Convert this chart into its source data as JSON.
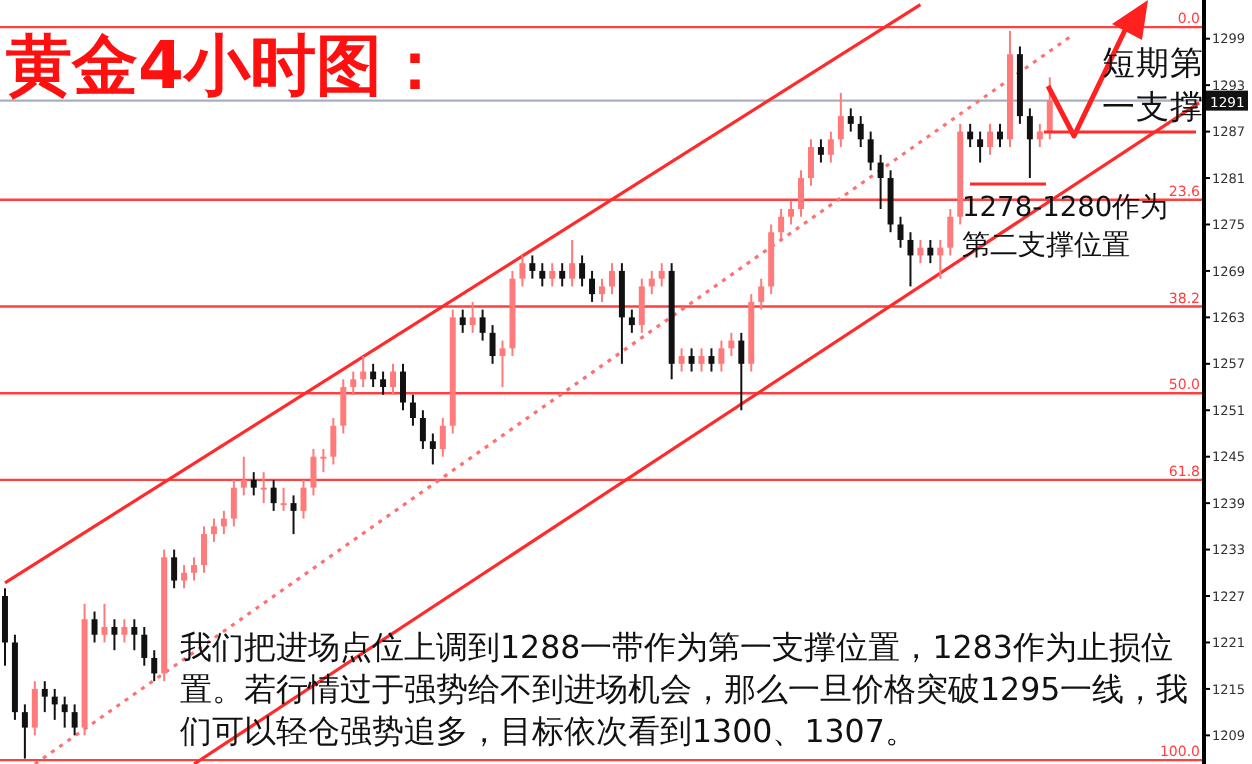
{
  "chart_data": {
    "type": "candlestick",
    "title": "黄金4小时图：",
    "categories": [
      null,
      null,
      null,
      null,
      null,
      null,
      null,
      null,
      null,
      null,
      null,
      null,
      null,
      null,
      null,
      null,
      null,
      null,
      null,
      null,
      null,
      null,
      null,
      null,
      null,
      null,
      null,
      null,
      null,
      null,
      null,
      null,
      null,
      null,
      null,
      null,
      null,
      null,
      null,
      null,
      null,
      null,
      null,
      null,
      null,
      null,
      null,
      null,
      null,
      null,
      null,
      null,
      null,
      null,
      null,
      null,
      null,
      null,
      null,
      null,
      null,
      null,
      null,
      null,
      null,
      null,
      null,
      null,
      null,
      null,
      null,
      null,
      null,
      null,
      null,
      null,
      null,
      null,
      null,
      null,
      null,
      null,
      null,
      null,
      null,
      null,
      null,
      null,
      null,
      null,
      null,
      null,
      null,
      null,
      null,
      null,
      null,
      null,
      null,
      null,
      null,
      null,
      null,
      null,
      null,
      null,
      null,
      null,
      null,
      null,
      null,
      null,
      null,
      null,
      null,
      null,
      null,
      null,
      null,
      null,
      null
    ],
    "ohlc": [
      [
        1227,
        1228,
        1218,
        1221
      ],
      [
        1221,
        1222,
        1211,
        1212
      ],
      [
        1212,
        1213,
        1206,
        1210
      ],
      [
        1210,
        1216,
        1209,
        1215
      ],
      [
        1215,
        1216,
        1212,
        1214
      ],
      [
        1214,
        1215,
        1211,
        1213
      ],
      [
        1213,
        1214,
        1210,
        1212
      ],
      [
        1212,
        1213,
        1209,
        1210
      ],
      [
        1210,
        1226,
        1209,
        1224
      ],
      [
        1224,
        1225,
        1221,
        1222
      ],
      [
        1222,
        1226,
        1221,
        1223
      ],
      [
        1223,
        1224,
        1220,
        1222
      ],
      [
        1222,
        1224,
        1221,
        1223
      ],
      [
        1223,
        1224,
        1220,
        1222
      ],
      [
        1222,
        1223,
        1218,
        1219
      ],
      [
        1219,
        1220,
        1216,
        1217
      ],
      [
        1217,
        1233,
        1216,
        1232
      ],
      [
        1232,
        1233,
        1228,
        1229
      ],
      [
        1229,
        1231,
        1228,
        1230
      ],
      [
        1230,
        1232,
        1229,
        1231
      ],
      [
        1231,
        1236,
        1230,
        1235
      ],
      [
        1235,
        1237,
        1234,
        1236
      ],
      [
        1236,
        1238,
        1235,
        1237
      ],
      [
        1237,
        1242,
        1236,
        1241
      ],
      [
        1241,
        1245,
        1240,
        1242
      ],
      [
        1242,
        1243,
        1240,
        1241
      ],
      [
        1241,
        1243,
        1239,
        1241
      ],
      [
        1241,
        1242,
        1238,
        1239
      ],
      [
        1239,
        1241,
        1238,
        1239
      ],
      [
        1239,
        1240,
        1235,
        1238
      ],
      [
        1238,
        1242,
        1237,
        1241
      ],
      [
        1241,
        1246,
        1240,
        1245
      ],
      [
        1245,
        1246,
        1243,
        1245
      ],
      [
        1245,
        1250,
        1244,
        1249
      ],
      [
        1249,
        1255,
        1248,
        1254
      ],
      [
        1254,
        1256,
        1253,
        1255
      ],
      [
        1255,
        1258,
        1254,
        1256
      ],
      [
        1256,
        1257,
        1254,
        1255
      ],
      [
        1255,
        1256,
        1253,
        1254
      ],
      [
        1254,
        1257,
        1253,
        1256
      ],
      [
        1256,
        1257,
        1251,
        1252
      ],
      [
        1252,
        1253,
        1249,
        1250
      ],
      [
        1250,
        1251,
        1246,
        1247
      ],
      [
        1247,
        1248,
        1244,
        1246
      ],
      [
        1246,
        1250,
        1245,
        1249
      ],
      [
        1249,
        1264,
        1248,
        1263
      ],
      [
        1263,
        1264,
        1261,
        1262
      ],
      [
        1262,
        1265,
        1261,
        1263
      ],
      [
        1263,
        1264,
        1260,
        1261
      ],
      [
        1261,
        1262,
        1257,
        1258
      ],
      [
        1258,
        1260,
        1254,
        1259
      ],
      [
        1259,
        1269,
        1258,
        1268
      ],
      [
        1268,
        1271,
        1267,
        1270
      ],
      [
        1270,
        1271,
        1268,
        1269
      ],
      [
        1269,
        1270,
        1267,
        1268
      ],
      [
        1268,
        1270,
        1267,
        1269
      ],
      [
        1269,
        1270,
        1267,
        1268
      ],
      [
        1268,
        1273,
        1267,
        1270
      ],
      [
        1270,
        1271,
        1267,
        1268
      ],
      [
        1268,
        1269,
        1265,
        1266
      ],
      [
        1266,
        1268,
        1265,
        1267
      ],
      [
        1267,
        1270,
        1266,
        1269
      ],
      [
        1269,
        1270,
        1257,
        1263
      ],
      [
        1263,
        1264,
        1261,
        1262
      ],
      [
        1262,
        1268,
        1261,
        1267
      ],
      [
        1267,
        1269,
        1266,
        1268
      ],
      [
        1268,
        1270,
        1267,
        1269
      ],
      [
        1269,
        1270,
        1255,
        1257
      ],
      [
        1257,
        1259,
        1256,
        1258
      ],
      [
        1258,
        1259,
        1256,
        1257
      ],
      [
        1257,
        1259,
        1256,
        1258
      ],
      [
        1258,
        1259,
        1256,
        1257
      ],
      [
        1257,
        1260,
        1256,
        1259
      ],
      [
        1259,
        1261,
        1258,
        1260
      ],
      [
        1260,
        1261,
        1251,
        1257
      ],
      [
        1257,
        1266,
        1256,
        1265
      ],
      [
        1265,
        1268,
        1264,
        1267
      ],
      [
        1267,
        1275,
        1266,
        1274
      ],
      [
        1274,
        1277,
        1273,
        1276
      ],
      [
        1276,
        1278,
        1275,
        1277
      ],
      [
        1277,
        1282,
        1276,
        1281
      ],
      [
        1281,
        1286,
        1280,
        1285
      ],
      [
        1285,
        1286,
        1283,
        1284
      ],
      [
        1284,
        1287,
        1283,
        1286
      ],
      [
        1286,
        1292,
        1285,
        1289
      ],
      [
        1289,
        1290,
        1287,
        1288
      ],
      [
        1288,
        1289,
        1285,
        1286
      ],
      [
        1286,
        1287,
        1282,
        1283
      ],
      [
        1283,
        1284,
        1277,
        1281
      ],
      [
        1281,
        1282,
        1274,
        1275
      ],
      [
        1275,
        1276,
        1272,
        1273
      ],
      [
        1273,
        1274,
        1267,
        1271
      ],
      [
        1271,
        1273,
        1270,
        1272
      ],
      [
        1272,
        1273,
        1270,
        1271
      ],
      [
        1271,
        1273,
        1268,
        1272
      ],
      [
        1272,
        1277,
        1271,
        1276
      ],
      [
        1276,
        1288,
        1275,
        1287
      ],
      [
        1287,
        1288,
        1285,
        1286
      ],
      [
        1286,
        1287,
        1283,
        1285
      ],
      [
        1285,
        1288,
        1284,
        1287
      ],
      [
        1287,
        1288,
        1285,
        1286
      ],
      [
        1286,
        1300,
        1285,
        1297
      ],
      [
        1297,
        1298,
        1288,
        1289
      ],
      [
        1289,
        1290,
        1281,
        1286
      ],
      [
        1286,
        1288,
        1285,
        1287
      ],
      [
        1287,
        1294,
        1286,
        1291
      ],
      null,
      null,
      null,
      null,
      null,
      null,
      null,
      null,
      null,
      null,
      null,
      null,
      null,
      null,
      null
    ],
    "series": [
      {
        "type": "line",
        "values": [
          1228.7,
          null,
          null,
          null,
          null,
          null,
          null,
          null,
          null,
          null,
          null,
          null,
          null,
          null,
          null,
          null,
          null,
          null,
          null,
          null,
          null,
          null,
          null,
          null,
          null,
          null,
          null,
          null,
          null,
          null,
          null,
          null,
          null,
          null,
          null,
          null,
          null,
          null,
          null,
          null,
          null,
          null,
          null,
          null,
          null,
          null,
          null,
          null,
          null,
          null,
          null,
          null,
          null,
          null,
          null,
          null,
          null,
          null,
          null,
          null,
          null,
          null,
          null,
          null,
          null,
          null,
          null,
          null,
          null,
          null,
          null,
          null,
          null,
          null,
          null,
          null,
          null,
          null,
          null,
          null,
          null,
          null,
          null,
          null,
          null,
          null,
          null,
          null,
          null,
          null,
          null,
          null,
          1303.4,
          null,
          null,
          null,
          null,
          null,
          null,
          null,
          null,
          null,
          null,
          null,
          null,
          null,
          null,
          null,
          null,
          null,
          null,
          null,
          null,
          null,
          null,
          null,
          null,
          null,
          null,
          null,
          null
        ],
        "color": "#ff2a2a"
      },
      {
        "type": "line",
        "values": [
          null,
          null,
          null,
          null,
          null,
          null,
          null,
          null,
          null,
          null,
          null,
          null,
          null,
          null,
          null,
          null,
          null,
          null,
          null,
          1205.3,
          null,
          null,
          null,
          null,
          null,
          null,
          null,
          null,
          null,
          null,
          null,
          null,
          null,
          null,
          null,
          null,
          null,
          null,
          null,
          null,
          null,
          null,
          null,
          null,
          null,
          null,
          null,
          null,
          null,
          null,
          null,
          null,
          null,
          null,
          null,
          null,
          null,
          null,
          null,
          null,
          null,
          null,
          null,
          null,
          null,
          null,
          null,
          null,
          null,
          null,
          null,
          null,
          null,
          null,
          null,
          null,
          null,
          null,
          null,
          null,
          null,
          null,
          null,
          null,
          null,
          null,
          null,
          null,
          null,
          null,
          null,
          null,
          null,
          null,
          null,
          null,
          null,
          null,
          null,
          null,
          null,
          null,
          null,
          null,
          null,
          null,
          null,
          null,
          null,
          null,
          null,
          null,
          null,
          null,
          null,
          null,
          null,
          null,
          null,
          null,
          1290.7
        ],
        "color": "#ff2a2a"
      },
      {
        "type": "line",
        "values": [
          null,
          null,
          null,
          1205.3,
          null,
          null,
          null,
          null,
          null,
          null,
          null,
          null,
          null,
          null,
          null,
          null,
          null,
          null,
          null,
          null,
          null,
          null,
          null,
          null,
          null,
          null,
          null,
          null,
          null,
          null,
          null,
          null,
          null,
          null,
          null,
          null,
          null,
          null,
          null,
          null,
          null,
          null,
          null,
          null,
          null,
          null,
          null,
          null,
          null,
          null,
          null,
          null,
          null,
          null,
          null,
          null,
          null,
          null,
          null,
          null,
          null,
          null,
          null,
          null,
          null,
          null,
          null,
          null,
          null,
          null,
          null,
          null,
          null,
          null,
          null,
          null,
          null,
          null,
          null,
          null,
          null,
          null,
          null,
          null,
          null,
          null,
          null,
          null,
          null,
          null,
          null,
          null,
          null,
          null,
          null,
          null,
          null,
          null,
          null,
          null,
          null,
          null,
          null,
          null,
          null,
          null,
          null,
          1299.2,
          null,
          null,
          null,
          null,
          null,
          null,
          null,
          null,
          null,
          null,
          null,
          null,
          null
        ],
        "color": "#ff7070",
        "line_style": "dotted"
      }
    ],
    "ylim": [
      1205.3,
      1304
    ],
    "yticks": [
      1299,
      1293,
      1287,
      1281,
      1275,
      1269,
      1263,
      1257,
      1251,
      1245,
      1239,
      1233,
      1227,
      1221,
      1215,
      1209
    ],
    "tick_labels": "y",
    "ref_lines": [
      {
        "axis": "y",
        "value": 1300.5,
        "color": "#ff4040"
      },
      {
        "axis": "y",
        "value": 1278.2,
        "color": "#ff4040"
      },
      {
        "axis": "y",
        "value": 1264.4,
        "color": "#ff4040"
      },
      {
        "axis": "y",
        "value": 1253.2,
        "color": "#ff4040"
      },
      {
        "axis": "y",
        "value": 1242.0,
        "color": "#ff4040"
      },
      {
        "axis": "y",
        "value": 1205.8,
        "color": "#ff4040"
      },
      {
        "axis": "y",
        "value": 1291,
        "label": "1291",
        "color": "#a8b0c0"
      }
    ],
    "annotations": [
      {
        "text": "0.0",
        "y": 1300.5
      },
      {
        "text": "23.6",
        "y": 1278.2
      },
      {
        "text": "38.2",
        "y": 1264.4
      },
      {
        "text": "50.0",
        "y": 1253.2
      },
      {
        "text": "61.8",
        "y": 1242.0
      },
      {
        "text": "100.0",
        "y": 1205.8
      },
      "短期第一支撑",
      "1278-1280作为第二支撑位置",
      "我们把进场点位上调到1288一带作为第一支撑位置，1283作为止损位置。若行情过于强势给不到进场机会，那么一旦价格突破1295一线，我们可以轻仓强势追多，目标依次看到1300、1307。"
    ]
  }
}
